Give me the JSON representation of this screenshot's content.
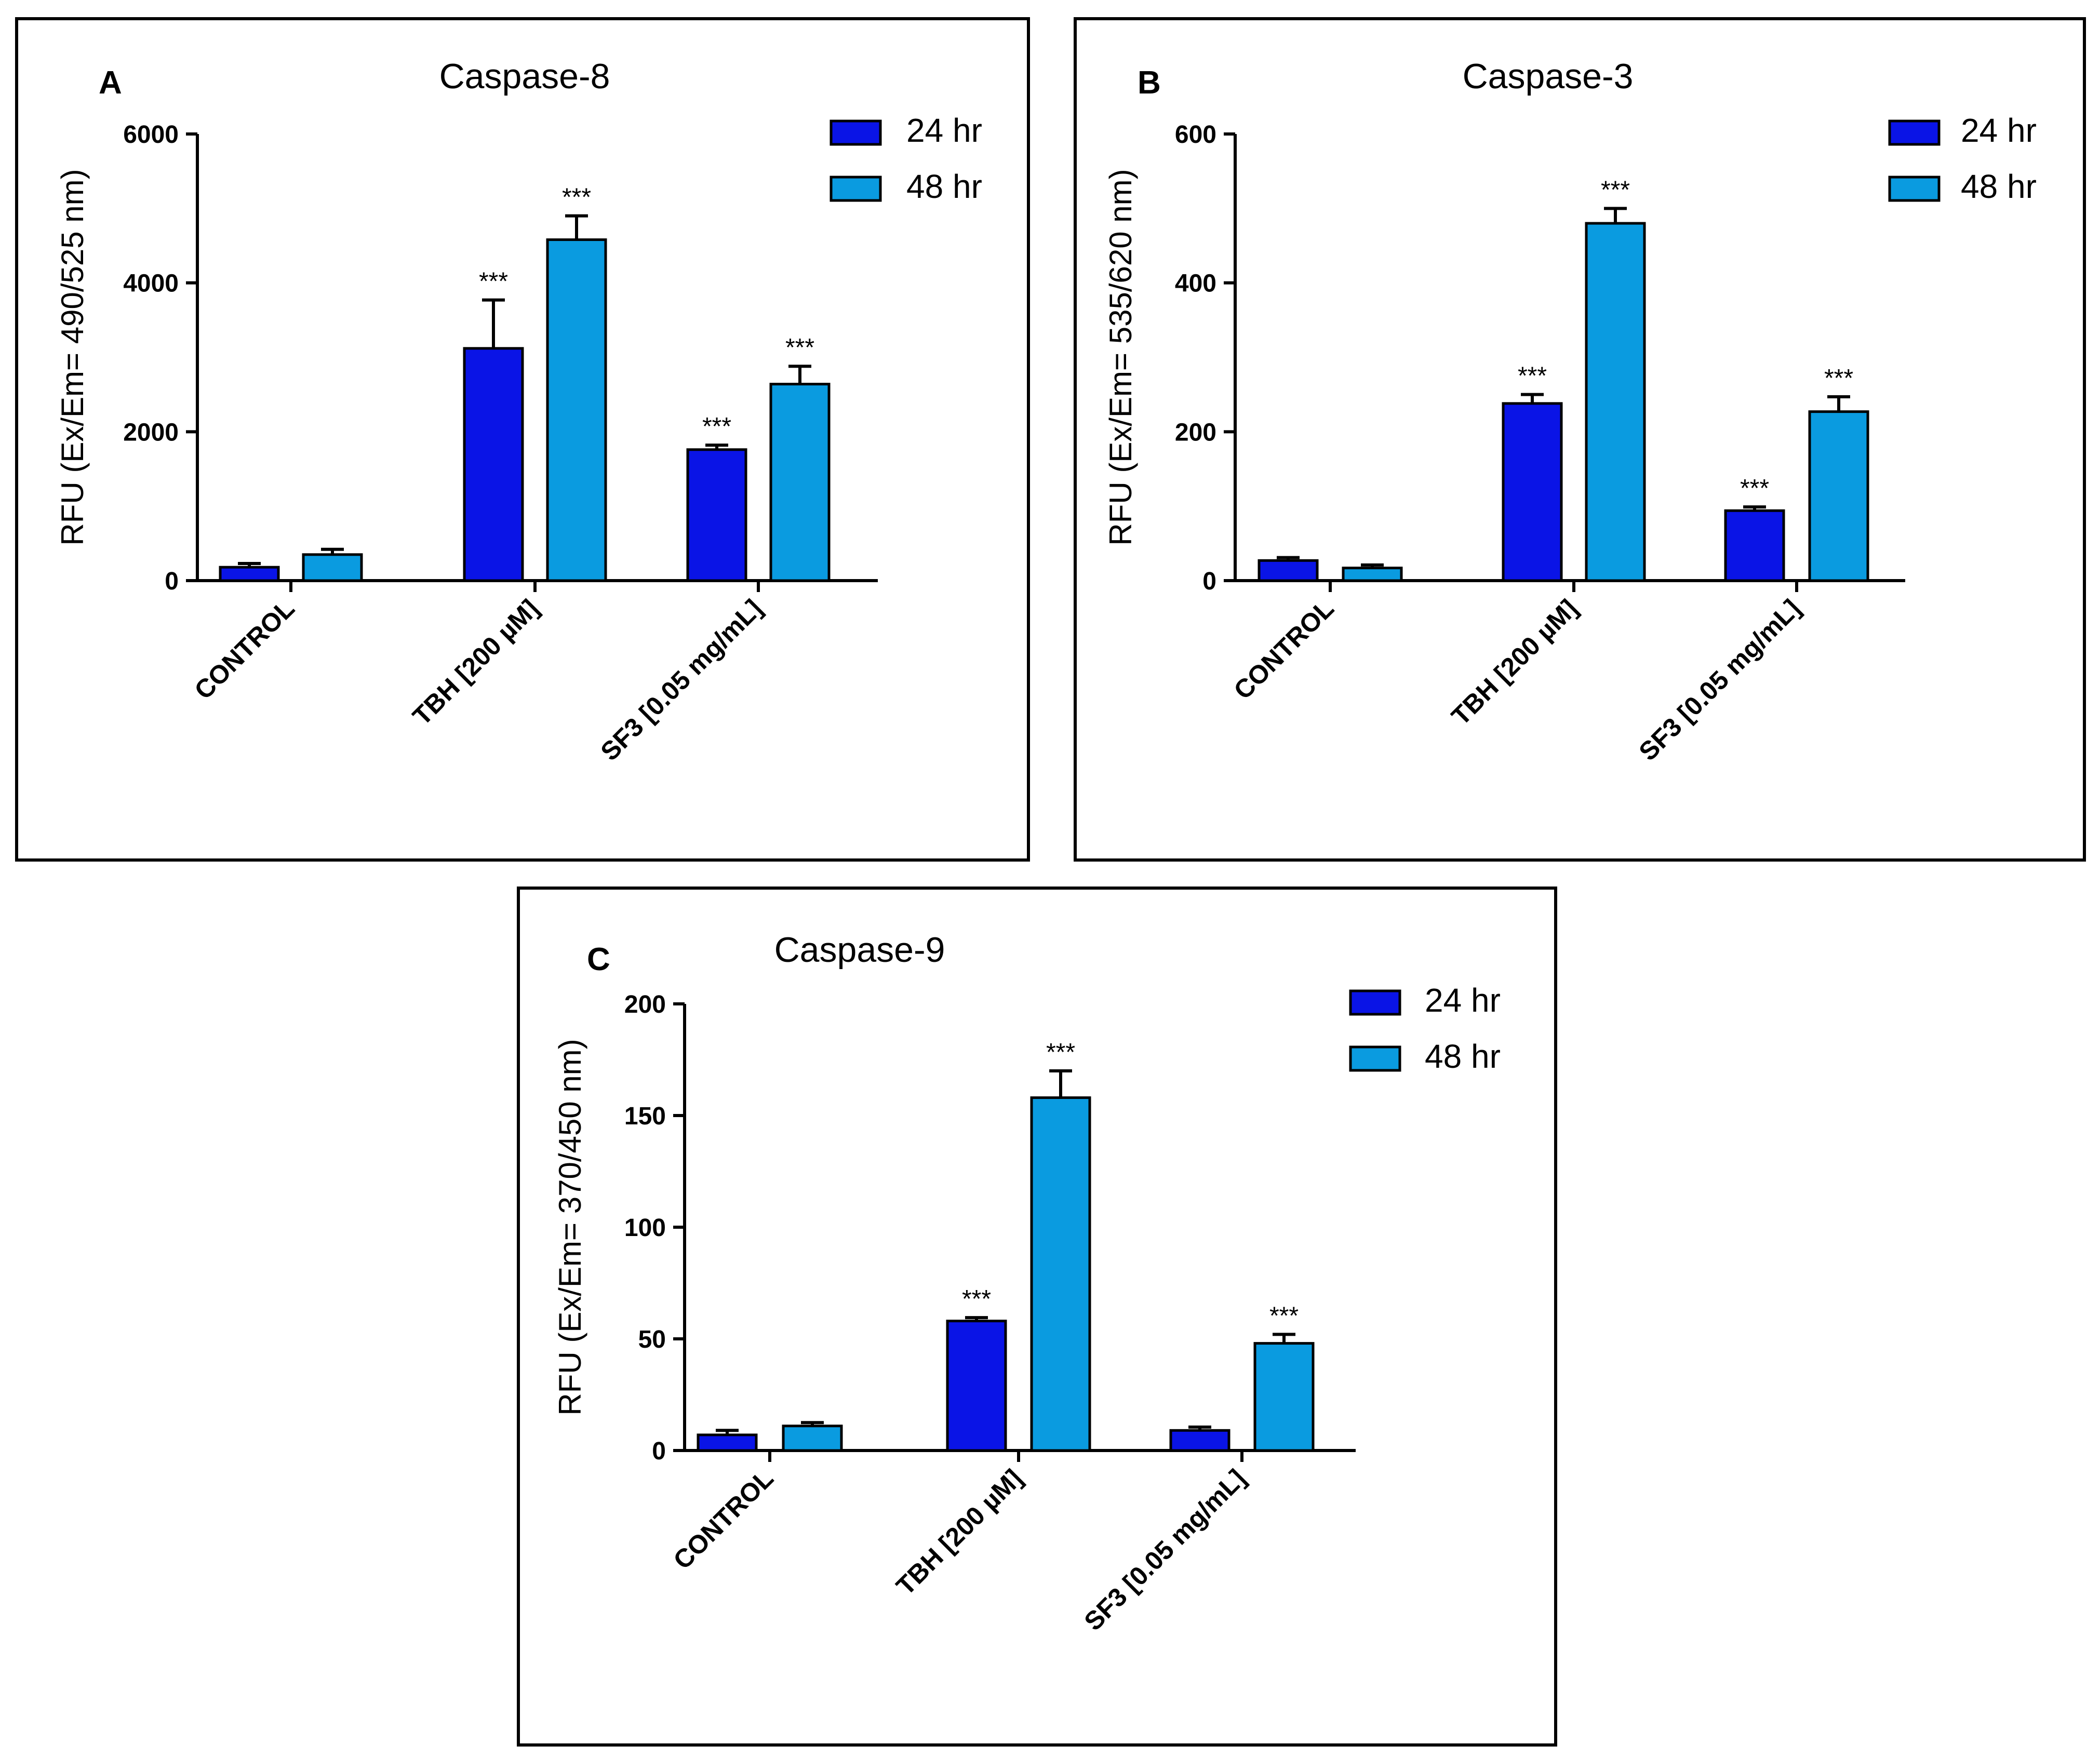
{
  "figure": {
    "colors": {
      "series_24": "#0a14e6",
      "series_48": "#0a9be0",
      "axis": "#000000",
      "frame": "#000000"
    }
  },
  "chart_data": [
    {
      "panel_label": "A",
      "type": "bar",
      "title": "Caspase-8",
      "xlabel": "",
      "ylabel": "RFU (Ex/Em= 490/525 nm)",
      "ylim": [
        0,
        6000
      ],
      "yticks": [
        0,
        2000,
        4000,
        6000
      ],
      "categories": [
        "CONTROL",
        "TBH [200 µM]",
        "SF3 [0.05 mg/mL]"
      ],
      "legend_position": "top-right",
      "series": [
        {
          "name": "24 hr",
          "values": [
            180,
            3120,
            1760
          ],
          "errors": [
            50,
            650,
            60
          ],
          "annotations": [
            "",
            "***",
            "***"
          ]
        },
        {
          "name": "48 hr",
          "values": [
            350,
            4580,
            2640
          ],
          "errors": [
            70,
            320,
            240
          ],
          "annotations": [
            "",
            "***",
            "***"
          ]
        }
      ]
    },
    {
      "panel_label": "B",
      "type": "bar",
      "title": "Caspase-3",
      "xlabel": "",
      "ylabel": "RFU (Ex/Em= 535/620 nm)",
      "ylim": [
        0,
        600
      ],
      "yticks": [
        0,
        200,
        400,
        600
      ],
      "categories": [
        "CONTROL",
        "TBH [200 µM]",
        "SF3 [0.05 mg/mL]"
      ],
      "legend_position": "top-right",
      "series": [
        {
          "name": "24 hr",
          "values": [
            27,
            238,
            94
          ],
          "errors": [
            4,
            12,
            5
          ],
          "annotations": [
            "",
            "***",
            "***"
          ]
        },
        {
          "name": "48 hr",
          "values": [
            17,
            480,
            227
          ],
          "errors": [
            4,
            20,
            20
          ],
          "annotations": [
            "",
            "***",
            "***"
          ]
        }
      ]
    },
    {
      "panel_label": "C",
      "type": "bar",
      "title": "Caspase-9",
      "xlabel": "",
      "ylabel": "RFU (Ex/Em= 370/450 nm)",
      "ylim": [
        0,
        200
      ],
      "yticks": [
        0,
        50,
        100,
        150,
        200
      ],
      "categories": [
        "CONTROL",
        "TBH [200 µM]",
        "SF3 [0.05 mg/mL]"
      ],
      "legend_position": "top-right",
      "series": [
        {
          "name": "24 hr",
          "values": [
            7,
            58,
            9
          ],
          "errors": [
            2,
            1.5,
            1.5
          ],
          "annotations": [
            "",
            "***",
            ""
          ]
        },
        {
          "name": "48 hr",
          "values": [
            11,
            158,
            48
          ],
          "errors": [
            1.5,
            12,
            4
          ],
          "annotations": [
            "",
            "***",
            "***"
          ]
        }
      ]
    }
  ]
}
